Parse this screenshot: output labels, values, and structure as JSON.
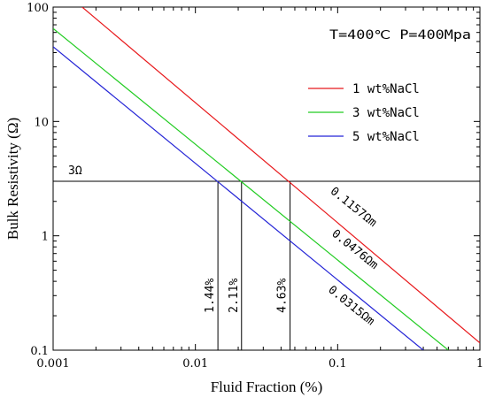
{
  "chart_data": {
    "type": "line",
    "xlabel": "Fluid Fraction (%)",
    "ylabel": "Bulk Resistivity (Ω)",
    "xscale": "log",
    "yscale": "log",
    "xlim": [
      0.001,
      1
    ],
    "ylim": [
      0.1,
      100
    ],
    "x_ticks": [
      {
        "value": 0.001,
        "label": "0.001"
      },
      {
        "value": 0.01,
        "label": "0.01"
      },
      {
        "value": 0.1,
        "label": "0.1"
      },
      {
        "value": 1,
        "label": "1"
      }
    ],
    "y_ticks": [
      {
        "value": 0.1,
        "label": "0.1"
      },
      {
        "value": 1,
        "label": "1"
      },
      {
        "value": 10,
        "label": "10"
      },
      {
        "value": 100,
        "label": "100"
      }
    ],
    "conditions": "T=400℃ P=400Mpa",
    "legend_position": "upper-right",
    "series": [
      {
        "name": "1 wt%NaCl",
        "color": "#e8191c",
        "x": [
          0.0016,
          1
        ],
        "y": [
          100,
          0.1157
        ],
        "slope_label": "0.1157Ωm"
      },
      {
        "name": "3 wt%NaCl",
        "color": "#22cc22",
        "x": [
          0.001,
          0.6
        ],
        "y": [
          65,
          0.1
        ],
        "slope_label": "0.0476Ωm"
      },
      {
        "name": "5 wt%NaCl",
        "color": "#2424d6",
        "x": [
          0.001,
          0.4
        ],
        "y": [
          45,
          0.1
        ],
        "slope_label": "0.0315Ωm"
      }
    ],
    "reference_line": {
      "y": 3,
      "label": "3Ω"
    },
    "intersections": [
      {
        "x": 0.0144,
        "label": "1.44%"
      },
      {
        "x": 0.0211,
        "label": "2.11%"
      },
      {
        "x": 0.0463,
        "label": "4.63%"
      }
    ]
  }
}
